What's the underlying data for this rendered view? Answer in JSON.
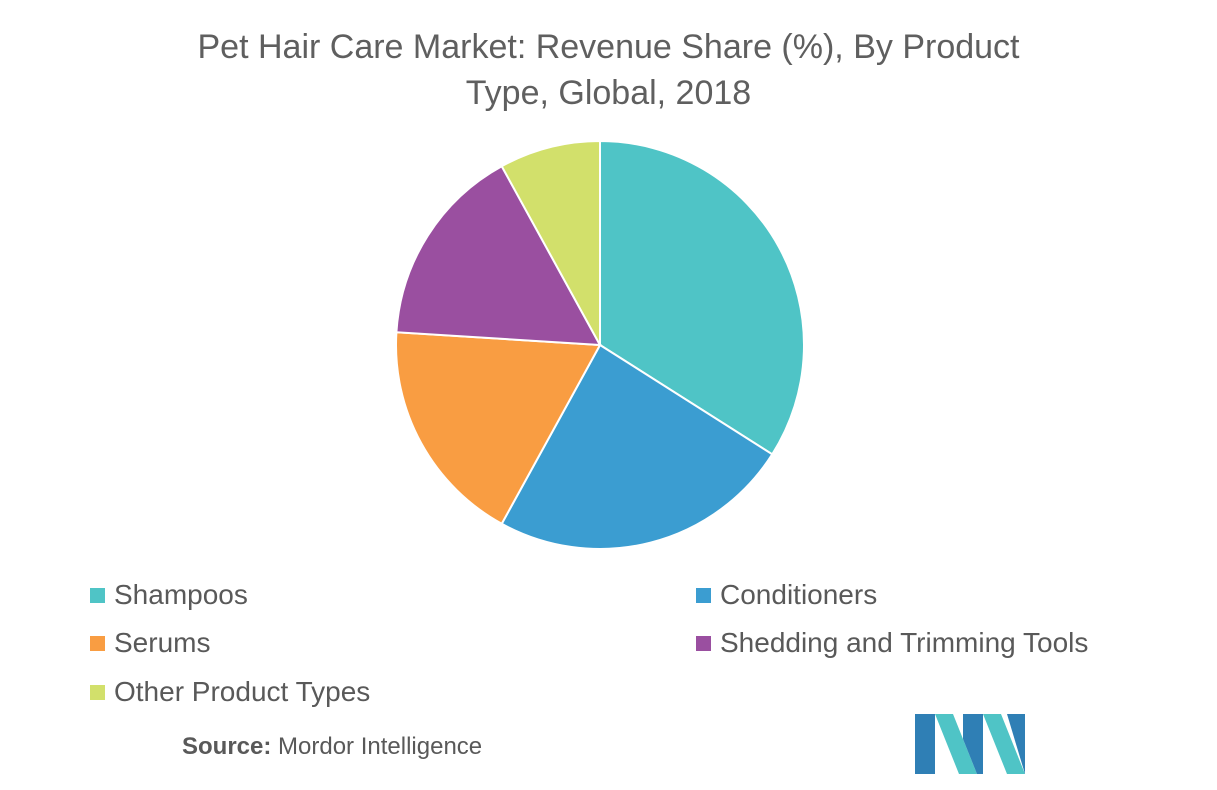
{
  "chart_data": {
    "type": "pie",
    "title": "Pet Hair Care Market: Revenue Share (%), By Product Type, Global, 2018",
    "categories": [
      "Shampoos",
      "Conditioners",
      "Serums",
      "Shedding and Trimming Tools",
      "Other Product Types"
    ],
    "values": [
      34,
      24,
      18,
      16,
      8
    ],
    "colors": [
      "#4fc4c6",
      "#3b9dd1",
      "#f99d42",
      "#9a4fa0",
      "#d2e06b"
    ],
    "start_angle_deg": 0,
    "direction": "clockwise",
    "legend_position": "bottom"
  },
  "title_lines": [
    "Pet Hair Care Market: Revenue Share (%), By Product",
    "Type, Global, 2018"
  ],
  "source": {
    "label": "Source:",
    "text": "Mordor Intelligence"
  },
  "logo": {
    "icon": "mordor-intelligence-logo",
    "colors": [
      "#2f7fb5",
      "#4fc4c6"
    ]
  }
}
